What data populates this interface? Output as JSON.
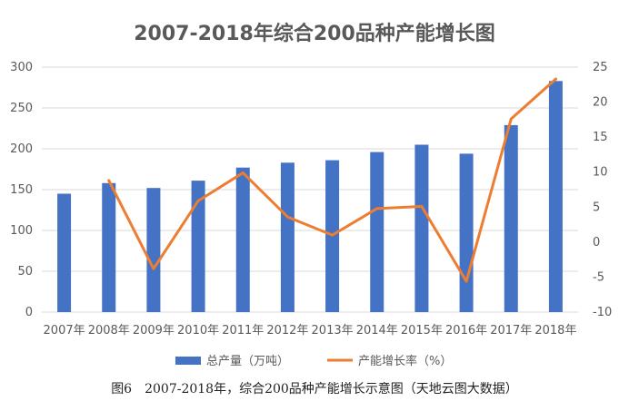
{
  "caption": "图6　2007-2018年，综合200品种产能增长示意图（天地云图大数据）",
  "colors": {
    "bar": "#4472c4",
    "line": "#ed7d31",
    "grid": "#d9d9d9",
    "text": "#595959"
  },
  "chart_data": {
    "type": "bar+line",
    "title": "2007-2018年综合200品种产能增长图",
    "categories": [
      "2007年",
      "2008年",
      "2009年",
      "2010年",
      "2011年",
      "2012年",
      "2013年",
      "2014年",
      "2015年",
      "2016年",
      "2017年",
      "2018年"
    ],
    "series": [
      {
        "name": "总产量（万吨）",
        "type": "bar",
        "axis": "left",
        "values": [
          145,
          158,
          152,
          161,
          177,
          183,
          186,
          196,
          205,
          194,
          229,
          283
        ]
      },
      {
        "name": "产能增长率（%）",
        "type": "line",
        "axis": "right",
        "values": [
          null,
          8.8,
          -3.8,
          5.9,
          9.9,
          3.6,
          1.0,
          4.8,
          5.1,
          -5.6,
          17.6,
          23.3
        ]
      }
    ],
    "y_left": {
      "min": 0,
      "max": 300,
      "ticks": [
        0,
        50,
        100,
        150,
        200,
        250,
        300
      ]
    },
    "y_right": {
      "min": -10,
      "max": 25,
      "ticks": [
        -10,
        -5,
        0,
        5,
        10,
        15,
        20,
        25
      ]
    },
    "grid": true,
    "legend_position": "bottom"
  }
}
